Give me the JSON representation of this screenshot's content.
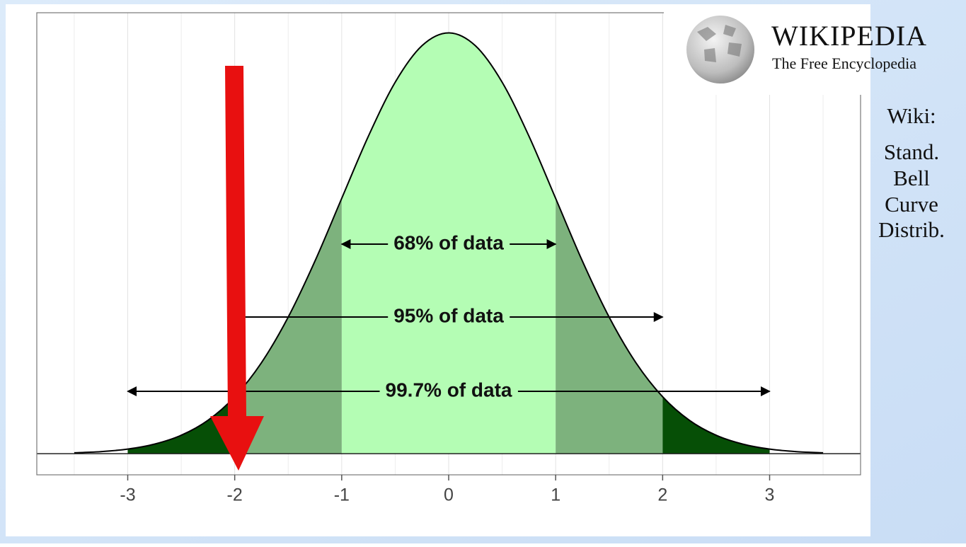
{
  "chart_data": {
    "type": "bell",
    "x": [
      -3.5,
      -3.25,
      -3,
      -2.75,
      -2.5,
      -2.25,
      -2,
      -1.75,
      -1.5,
      -1.25,
      -1,
      -0.75,
      -0.5,
      -0.25,
      0,
      0.25,
      0.5,
      0.75,
      1,
      1.25,
      1.5,
      1.75,
      2,
      2.25,
      2.5,
      2.75,
      3,
      3.25,
      3.5
    ],
    "values": [
      0.0009,
      0.002,
      0.0044,
      0.0091,
      0.0175,
      0.0317,
      0.054,
      0.0863,
      0.1295,
      0.1826,
      0.242,
      0.3011,
      0.3521,
      0.3867,
      0.3989,
      0.3867,
      0.3521,
      0.3011,
      0.242,
      0.1826,
      0.1295,
      0.0863,
      0.054,
      0.0317,
      0.0175,
      0.0091,
      0.0044,
      0.002,
      0.0009
    ],
    "color": "#000000",
    "bands": [
      {
        "from": -1,
        "to": 1,
        "color": "#b4fdb4"
      },
      {
        "from": -2,
        "to": -1,
        "color": "#7db27d"
      },
      {
        "from": 1,
        "to": 2,
        "color": "#7db27d"
      },
      {
        "from": -3,
        "to": -2,
        "color": "#064f06"
      },
      {
        "from": 2,
        "to": 3,
        "color": "#064f06"
      }
    ],
    "annotations": [
      {
        "text": "68% of data",
        "from": -1,
        "to": 1
      },
      {
        "text": "95% of data",
        "from": -2,
        "to": 2
      },
      {
        "text": "99.7% of data",
        "from": -3,
        "to": 3
      }
    ],
    "xlim": [
      -3.85,
      3.85
    ],
    "ylim": [
      -0.02,
      0.418
    ],
    "xticks": [
      -3,
      -2,
      -1,
      0,
      1,
      2,
      3
    ],
    "x_minor_ticks": [
      -3.5,
      -2.5,
      -1.5,
      -0.5,
      0.5,
      1.5,
      2.5,
      3.5
    ],
    "grid": true
  },
  "logo": {
    "title": "WIKIPEDIA",
    "subtitle": "The Free Encyclopedia"
  },
  "sidebar": {
    "heading": "Wiki:",
    "lines": [
      "Stand.",
      "Bell",
      "Curve",
      "Distrib."
    ]
  }
}
